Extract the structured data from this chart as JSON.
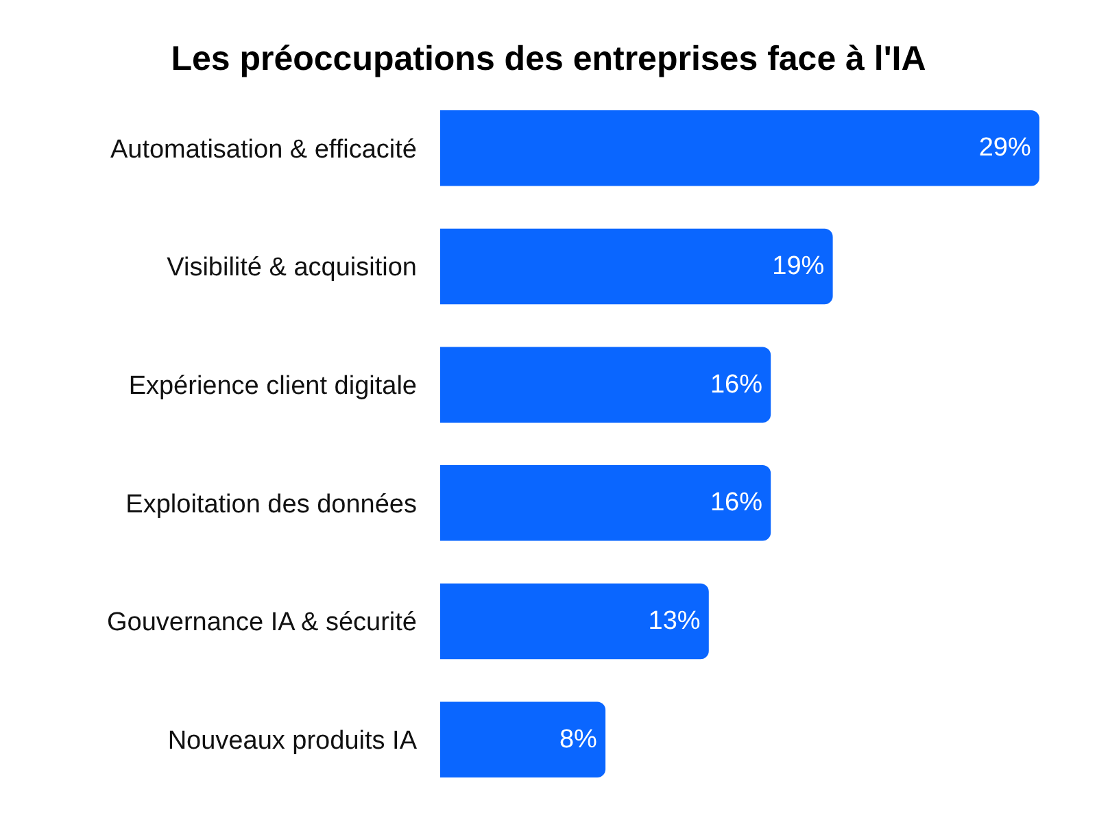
{
  "chart_data": {
    "type": "bar",
    "orientation": "horizontal",
    "title": "Les préoccupations des entreprises face à l'IA",
    "categories": [
      "Automatisation & efficacité",
      "Visibilité & acquisition",
      "Expérience client digitale",
      "Exploitation des données",
      "Gouvernance IA & sécurité",
      "Nouveaux produits IA"
    ],
    "values": [
      29,
      19,
      16,
      16,
      13,
      8
    ],
    "value_labels": [
      "29%",
      "19%",
      "16%",
      "16%",
      "13%",
      "8%"
    ],
    "color": "#0a66ff",
    "xlim": [
      0,
      29
    ],
    "tick_labels": "y"
  }
}
